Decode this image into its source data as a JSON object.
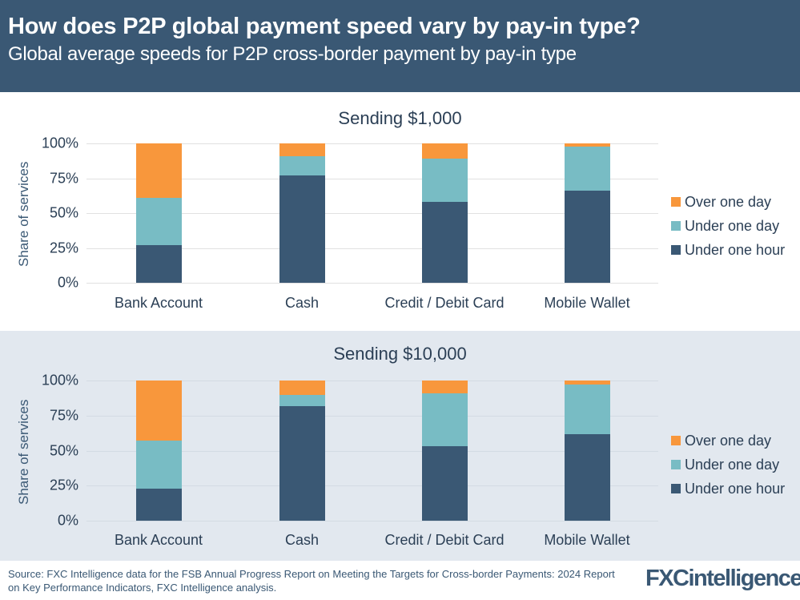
{
  "header": {
    "title": "How does P2P global payment speed vary by pay-in type?",
    "subtitle": "Global average speeds for P2P cross-border payment by pay-in type"
  },
  "colors": {
    "header_bg": "#3a5874",
    "under_one_hour": "#3a5874",
    "under_one_day": "#78bcc4",
    "over_one_day": "#f8973c",
    "bottom_panel_bg": "#e2e8ef"
  },
  "legend": [
    "Over one day",
    "Under one day",
    "Under one hour"
  ],
  "yticks": [
    "100%",
    "75%",
    "50%",
    "25%",
    "0%"
  ],
  "ylabel": "Share of services",
  "chart_data": [
    {
      "type": "bar",
      "stacked": true,
      "title": "Sending $1,000",
      "xlabel": "",
      "ylabel": "Share of services",
      "ylim": [
        0,
        100
      ],
      "yticks": [
        0,
        25,
        50,
        75,
        100
      ],
      "grid": true,
      "legend_position": "right",
      "categories": [
        "Bank Account",
        "Cash",
        "Credit / Debit Card",
        "Mobile Wallet"
      ],
      "series": [
        {
          "name": "Under one hour",
          "color": "#3a5874",
          "values": [
            27,
            77,
            58,
            66
          ]
        },
        {
          "name": "Under one day",
          "color": "#78bcc4",
          "values": [
            34,
            14,
            31,
            32
          ]
        },
        {
          "name": "Over one day",
          "color": "#f8973c",
          "values": [
            39,
            9,
            11,
            2
          ]
        }
      ]
    },
    {
      "type": "bar",
      "stacked": true,
      "title": "Sending $10,000",
      "xlabel": "",
      "ylabel": "Share of services",
      "ylim": [
        0,
        100
      ],
      "yticks": [
        0,
        25,
        50,
        75,
        100
      ],
      "grid": true,
      "legend_position": "right",
      "categories": [
        "Bank Account",
        "Cash",
        "Credit / Debit Card",
        "Mobile Wallet"
      ],
      "series": [
        {
          "name": "Under one hour",
          "color": "#3a5874",
          "values": [
            23,
            82,
            53,
            62
          ]
        },
        {
          "name": "Under one day",
          "color": "#78bcc4",
          "values": [
            34,
            8,
            38,
            35
          ]
        },
        {
          "name": "Over one day",
          "color": "#f8973c",
          "values": [
            43,
            10,
            9,
            3
          ]
        }
      ]
    }
  ],
  "footer": {
    "source": "Source: FXC Intelligence data for the FSB Annual Progress Report on Meeting the Targets for Cross-border Payments: 2024 Report on Key Performance Indicators, FXC Intelligence analysis.",
    "logo_bold": "FXC",
    "logo_rest": "intelligence",
    "logo_tm": "®"
  }
}
